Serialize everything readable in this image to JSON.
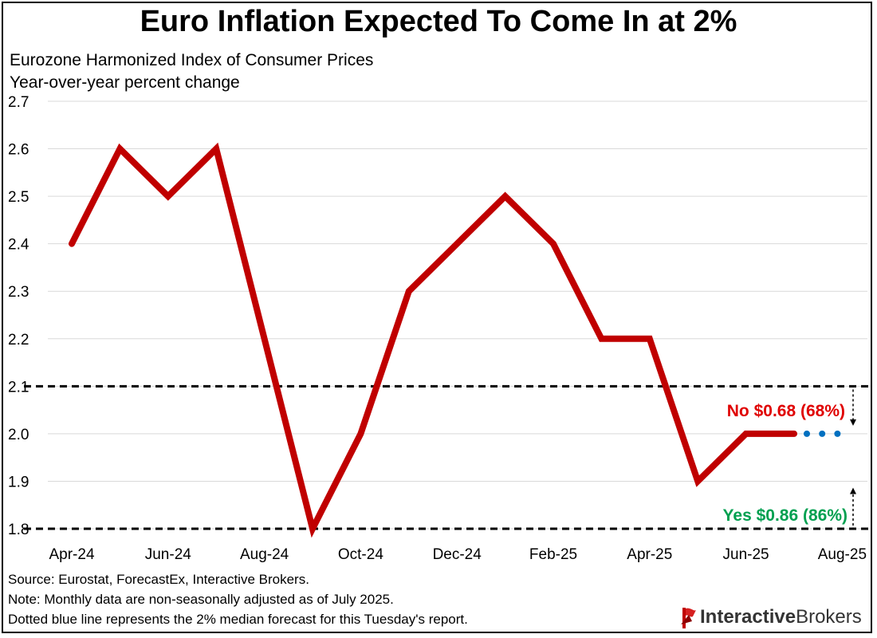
{
  "header": {
    "title": "Euro Inflation Expected To Come In at 2%",
    "subtitle_line1": "Eurozone Harmonized Index of Consumer Prices",
    "subtitle_line2": "Year-over-year percent change"
  },
  "footer": {
    "source": "Source: Eurostat, ForecastEx, Interactive Brokers.",
    "note": "Note: Monthly data are non-seasonally adjusted as of July 2025.",
    "dotted_note": "Dotted blue line represents the 2% median forecast for this Tuesday's report."
  },
  "logo": {
    "text_bold": "Interactive",
    "text_thin": "Brokers",
    "mark_icon": "ib-flag-logo-icon"
  },
  "chart_data": {
    "type": "line",
    "categories": [
      "Apr-24",
      "May-24",
      "Jun-24",
      "Jul-24",
      "Aug-24",
      "Sep-24",
      "Oct-24",
      "Nov-24",
      "Dec-24",
      "Jan-25",
      "Feb-25",
      "Mar-25",
      "Apr-25",
      "May-25",
      "Jun-25",
      "Jul-25",
      "Aug-25"
    ],
    "x_tick_labels": [
      "Apr-24",
      "Jun-24",
      "Aug-24",
      "Oct-24",
      "Dec-24",
      "Feb-25",
      "Apr-25",
      "Jun-25",
      "Aug-25"
    ],
    "series": [
      {
        "values": [
          2.4,
          2.6,
          2.5,
          2.6,
          2.2,
          1.8,
          2.0,
          2.3,
          2.4,
          2.5,
          2.4,
          2.2,
          2.2,
          1.9,
          2.0,
          2.0,
          null
        ],
        "color": "#c00000",
        "style": "solid"
      },
      {
        "values": [
          null,
          null,
          null,
          null,
          null,
          null,
          null,
          null,
          null,
          null,
          null,
          null,
          null,
          null,
          null,
          2.0,
          2.0
        ],
        "color": "#0070c0",
        "style": "dotted"
      }
    ],
    "ylim": [
      1.8,
      2.7
    ],
    "y_ticks": [
      "1.8",
      "1.9",
      "2.0",
      "2.1",
      "2.2",
      "2.3",
      "2.4",
      "2.5",
      "2.6",
      "2.7"
    ],
    "grid": true,
    "reference_lines": [
      {
        "y": 2.1,
        "style": "dashed",
        "color": "#000000"
      },
      {
        "y": 1.8,
        "style": "dashed",
        "color": "#000000"
      }
    ],
    "annotations": [
      {
        "text": "No $0.68 (68%)",
        "color": "#e00000",
        "arrow": "down-from-2.1"
      },
      {
        "text": "Yes $0.86 (86%)",
        "color": "#00a050",
        "arrow": "up-toward-2.1"
      }
    ]
  }
}
